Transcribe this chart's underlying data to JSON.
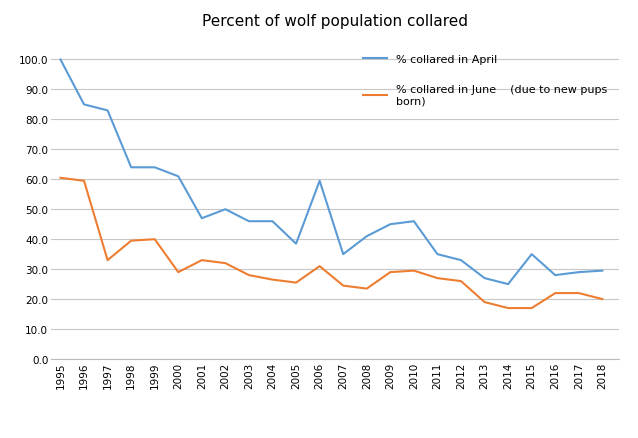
{
  "title": "Percent of wolf population collared",
  "years": [
    1995,
    1996,
    1997,
    1998,
    1999,
    2000,
    2001,
    2002,
    2003,
    2004,
    2005,
    2006,
    2007,
    2008,
    2009,
    2010,
    2011,
    2012,
    2013,
    2014,
    2015,
    2016,
    2017,
    2018
  ],
  "april": [
    100.0,
    85.0,
    83.0,
    64.0,
    64.0,
    61.0,
    47.0,
    50.0,
    46.0,
    46.0,
    38.5,
    59.5,
    35.0,
    41.0,
    45.0,
    46.0,
    35.0,
    33.0,
    27.0,
    25.0,
    35.0,
    28.0,
    29.0,
    29.5
  ],
  "june": [
    60.5,
    59.5,
    33.0,
    39.5,
    40.0,
    29.0,
    33.0,
    32.0,
    28.0,
    26.5,
    25.5,
    31.0,
    24.5,
    23.5,
    29.0,
    29.5,
    27.0,
    26.0,
    19.0,
    17.0,
    17.0,
    22.0,
    22.0,
    20.0
  ],
  "april_color": "#5b9bd5",
  "june_color": "#ed7d31",
  "legend_april": "% collared in April",
  "legend_june": "% collared in June    (due to new pups\nborn)",
  "ylim": [
    0.0,
    107.0
  ],
  "yticks": [
    0.0,
    10.0,
    20.0,
    30.0,
    40.0,
    50.0,
    60.0,
    70.0,
    80.0,
    90.0,
    100.0
  ],
  "grid_color": "#c8c8c8",
  "background_color": "#ffffff",
  "title_fontsize": 11,
  "tick_fontsize": 7.5,
  "legend_fontsize": 8
}
